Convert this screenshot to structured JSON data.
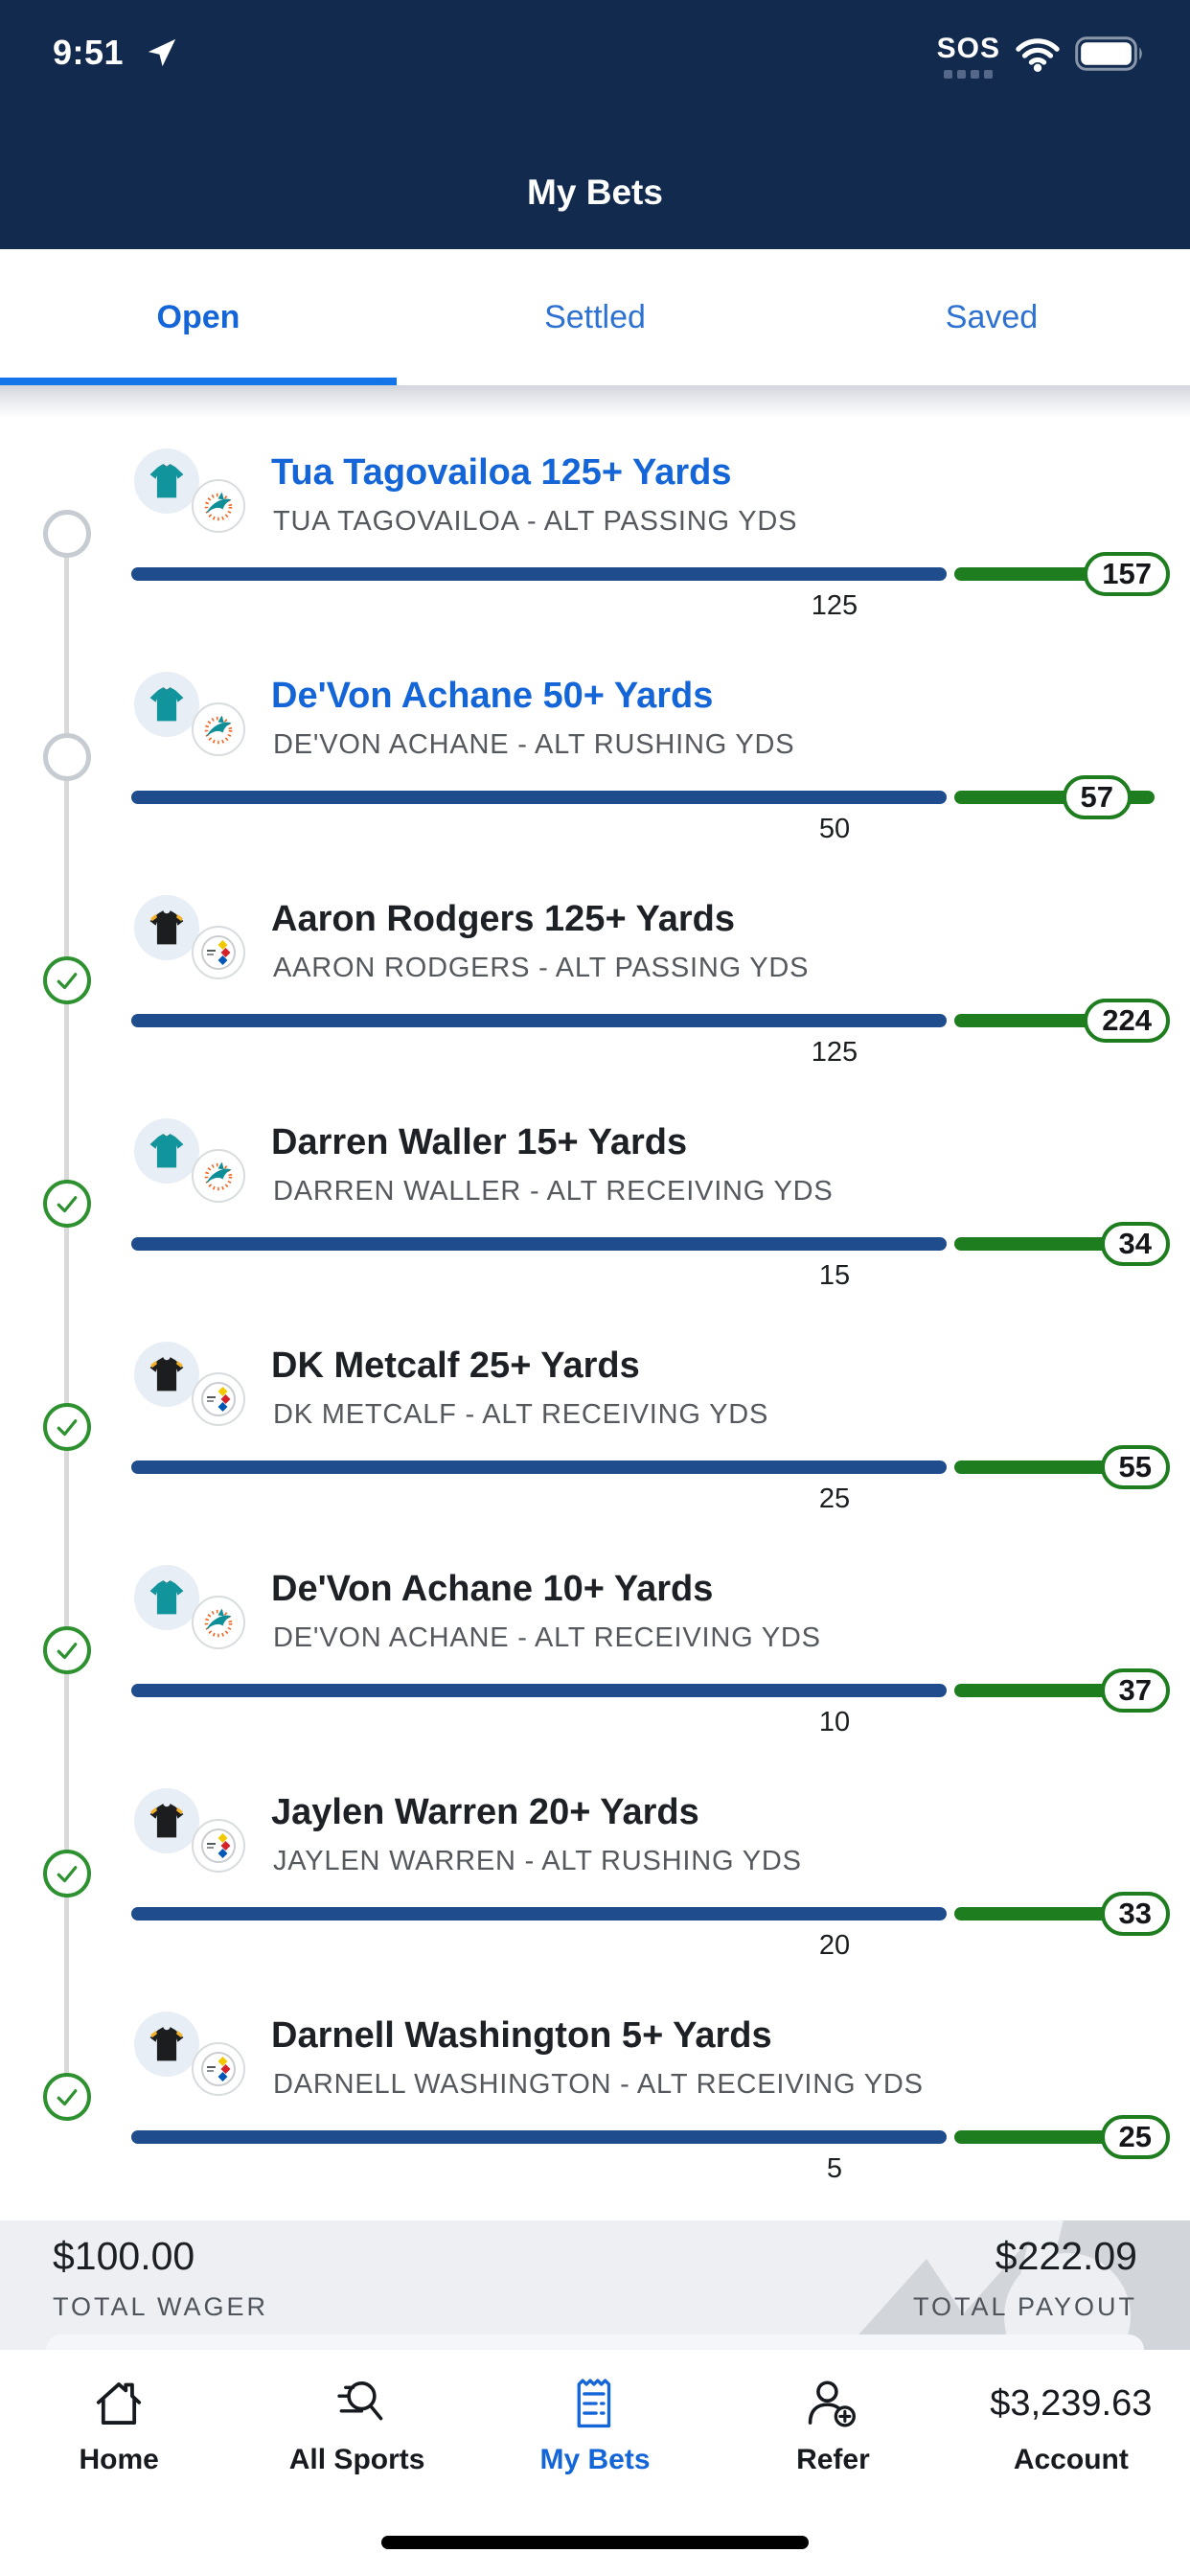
{
  "status_bar": {
    "time": "9:51",
    "carrier": "SOS"
  },
  "header": {
    "title": "My Bets"
  },
  "tabs": [
    {
      "label": "Open",
      "active": true
    },
    {
      "label": "Settled",
      "active": false
    },
    {
      "label": "Saved",
      "active": false
    }
  ],
  "bets": [
    {
      "title": "Tua Tagovailoa 125+ Yards",
      "subtitle": "TUA TAGOVAILOA - ALT PASSING YDS",
      "team": "dolphins",
      "status": "open",
      "threshold": "125",
      "value": "157",
      "pill_inset": 0
    },
    {
      "title": "De'Von Achane 50+ Yards",
      "subtitle": "DE'VON ACHANE - ALT RUSHING YDS",
      "team": "dolphins",
      "status": "open",
      "threshold": "50",
      "value": "57",
      "pill_inset": 40
    },
    {
      "title": "Aaron Rodgers 125+ Yards",
      "subtitle": "AARON RODGERS - ALT PASSING YDS",
      "team": "steelers",
      "status": "won",
      "threshold": "125",
      "value": "224",
      "pill_inset": 0
    },
    {
      "title": "Darren Waller 15+ Yards",
      "subtitle": "DARREN WALLER - ALT RECEIVING YDS",
      "team": "dolphins",
      "status": "won",
      "threshold": "15",
      "value": "34",
      "pill_inset": 0
    },
    {
      "title": "DK Metcalf 25+ Yards",
      "subtitle": "DK METCALF - ALT RECEIVING YDS",
      "team": "steelers",
      "status": "won",
      "threshold": "25",
      "value": "55",
      "pill_inset": 0
    },
    {
      "title": "De'Von Achane 10+ Yards",
      "subtitle": "DE'VON ACHANE - ALT RECEIVING YDS",
      "team": "dolphins",
      "status": "won",
      "threshold": "10",
      "value": "37",
      "pill_inset": 0
    },
    {
      "title": "Jaylen Warren 20+ Yards",
      "subtitle": "JAYLEN WARREN - ALT RUSHING YDS",
      "team": "steelers",
      "status": "won",
      "threshold": "20",
      "value": "33",
      "pill_inset": 0
    },
    {
      "title": "Darnell Washington 5+ Yards",
      "subtitle": "DARNELL WASHINGTON - ALT RECEIVING YDS",
      "team": "steelers",
      "status": "won",
      "threshold": "5",
      "value": "25",
      "pill_inset": 0
    }
  ],
  "summary": {
    "wager_amount": "$100.00",
    "wager_label": "TOTAL WAGER",
    "payout_amount": "$222.09",
    "payout_label": "TOTAL PAYOUT"
  },
  "nav": {
    "items": [
      {
        "label": "Home",
        "icon": "home",
        "active": false
      },
      {
        "label": "All Sports",
        "icon": "search",
        "active": false
      },
      {
        "label": "My Bets",
        "icon": "receipt",
        "active": true
      },
      {
        "label": "Refer",
        "icon": "person-add",
        "active": false
      },
      {
        "label": "Account",
        "icon": "balance",
        "amount": "$3,239.63",
        "active": false
      }
    ]
  },
  "colors": {
    "header_navy": "#112a4e",
    "accent_blue": "#1375e8",
    "tab_blue": "#1465d8",
    "bar_navy": "#1f4c8c",
    "bar_green": "#1e7d1f",
    "check_green": "#2e9130"
  }
}
